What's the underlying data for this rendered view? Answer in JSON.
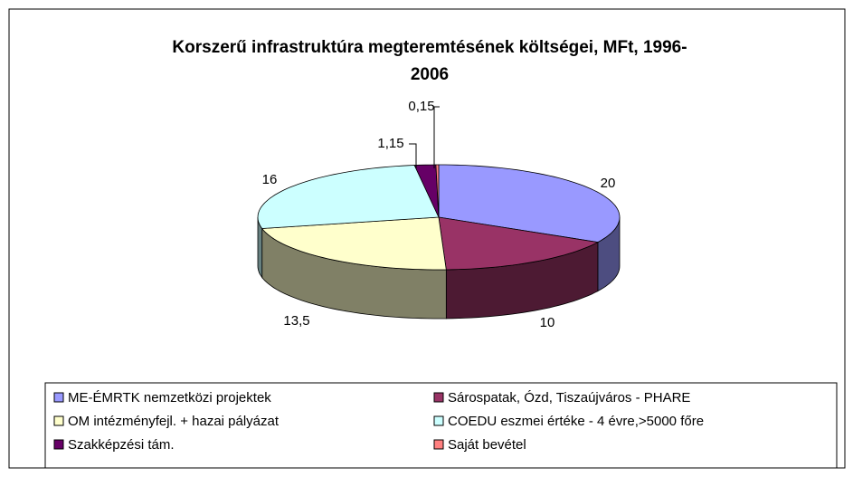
{
  "chart_data": {
    "type": "pie",
    "title": "Korszerű infrastruktúra megteremtésének költségei, MFt, 1996-2006",
    "categories": [
      "ME-ÉMRTK nemzetközi projektek",
      "Sárospatak, Ózd, Tiszaújváros - PHARE",
      "OM intézményfejl. + hazai pályázat",
      "COEDU eszmei értéke - 4 évre,>5000 főre",
      "Szakképzési tám.",
      "Saját bevétel"
    ],
    "values": [
      20,
      10,
      13.5,
      16,
      1.15,
      0.15
    ],
    "value_labels": [
      "20",
      "10",
      "13,5",
      "16",
      "1,15",
      "0,15"
    ],
    "colors": [
      "#9999FF",
      "#993366",
      "#FFFFCC",
      "#CCFFFF",
      "#660066",
      "#FF8080"
    ]
  }
}
